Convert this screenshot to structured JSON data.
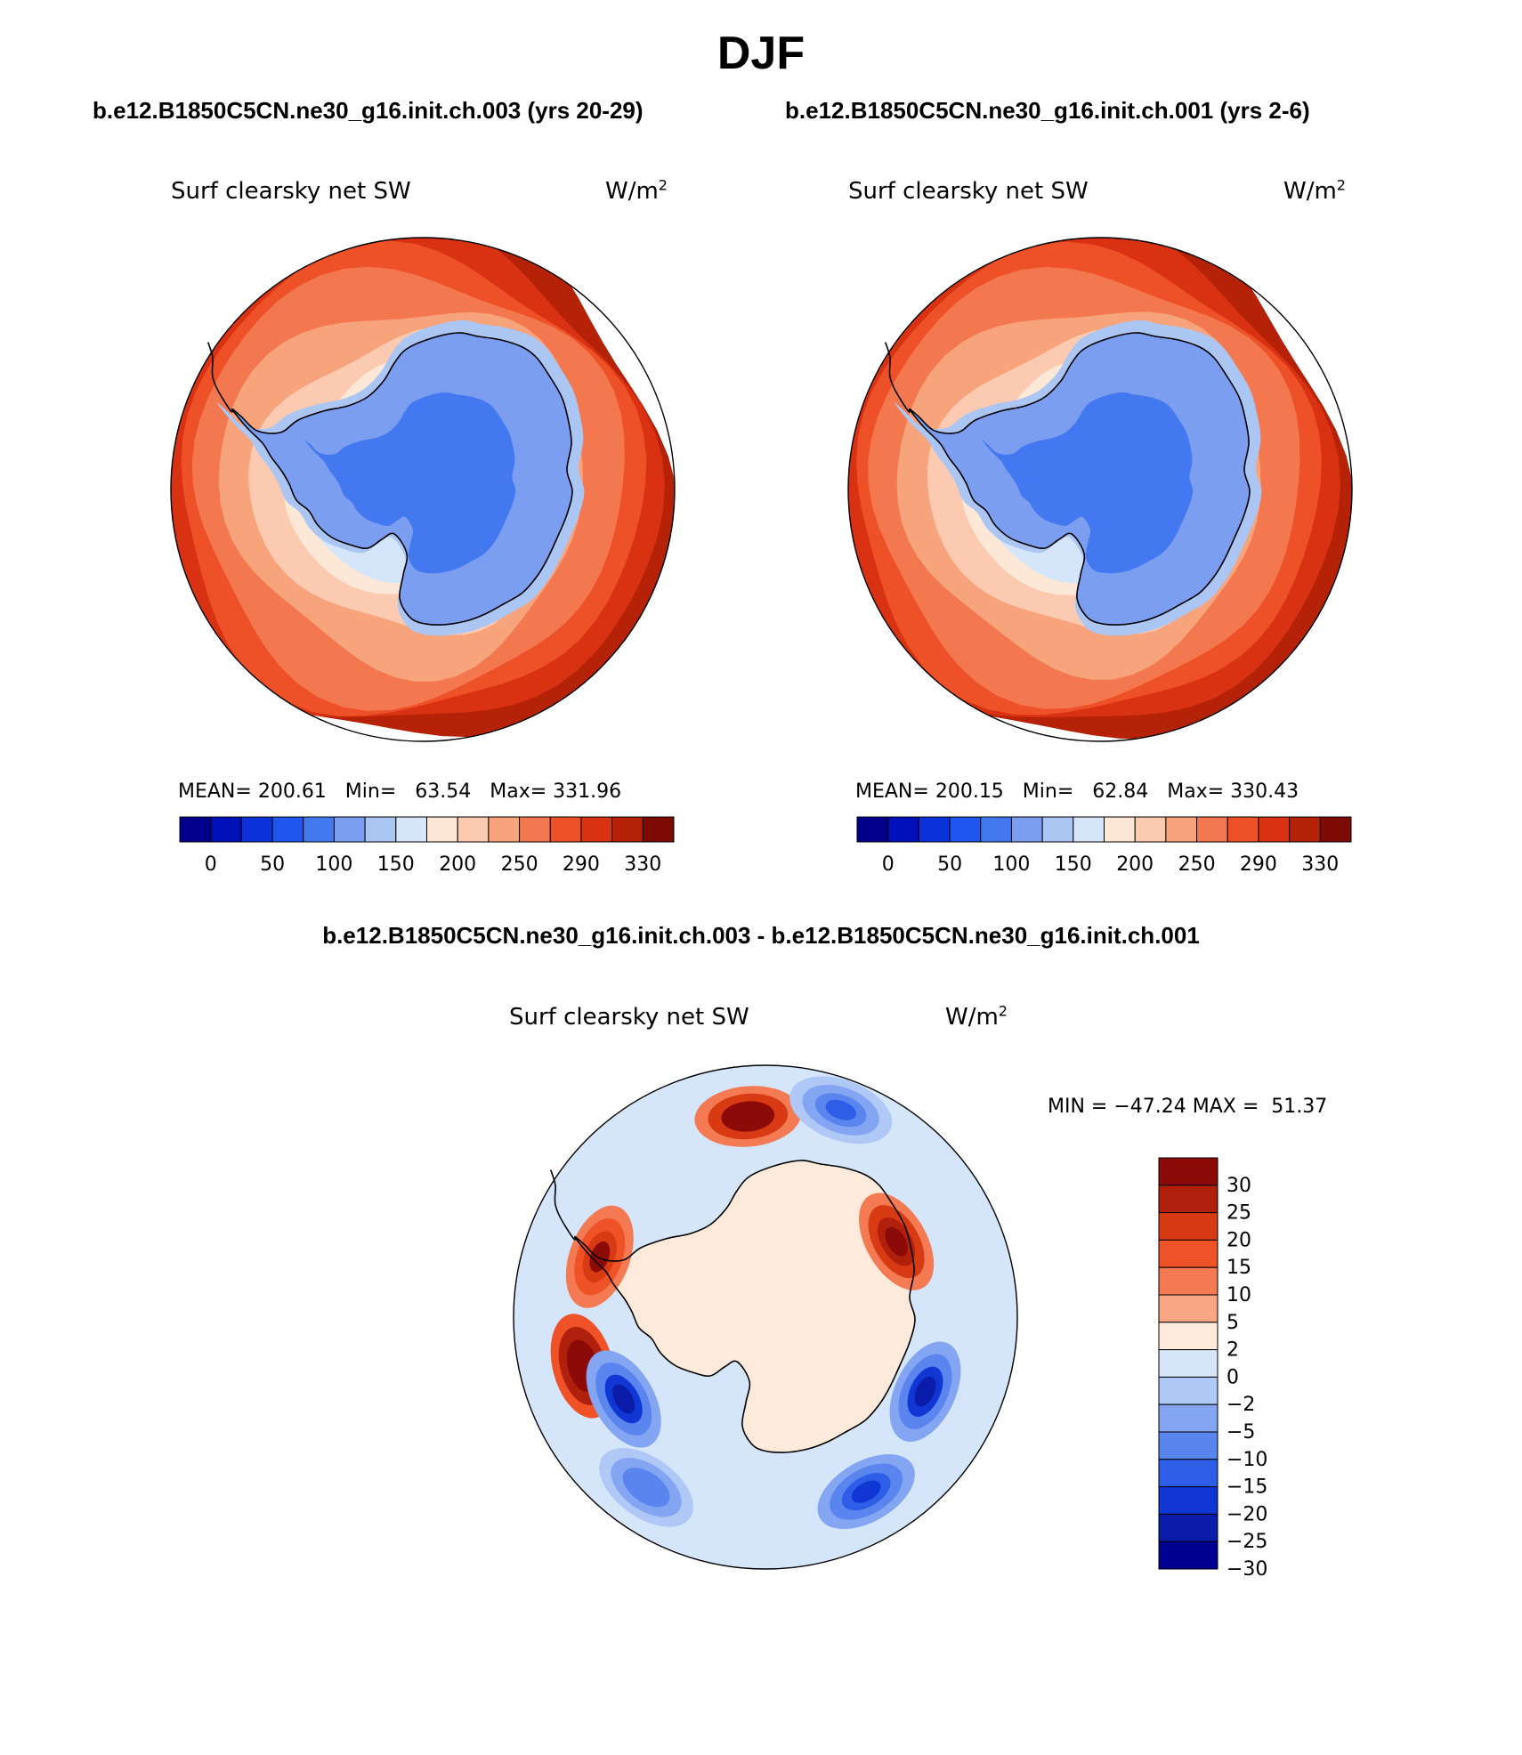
{
  "page": {
    "title": "DJF"
  },
  "panels": [
    {
      "case_title": "b.e12.B1850C5CN.ne30_g16.init.ch.003 (yrs 20-29)",
      "variable": "Surf clearsky net SW",
      "units_base": "W/m",
      "units_exp": "2",
      "stats": {
        "mean_label": "MEAN=",
        "mean": "200.61",
        "min_label": "Min=",
        "min": "63.54",
        "max_label": "Max=",
        "max": "331.96"
      }
    },
    {
      "case_title": "b.e12.B1850C5CN.ne30_g16.init.ch.001 (yrs 2-6)",
      "variable": "Surf clearsky net SW",
      "units_base": "W/m",
      "units_exp": "2",
      "stats": {
        "mean_label": "MEAN=",
        "mean": "200.15",
        "min_label": "Min=",
        "min": "62.84",
        "max_label": "Max=",
        "max": "330.43"
      }
    }
  ],
  "diff_panel": {
    "title": "b.e12.B1850C5CN.ne30_g16.init.ch.003 - b.e12.B1850C5CN.ne30_g16.init.ch.001",
    "variable": "Surf clearsky net SW",
    "units_base": "W/m",
    "units_exp": "2",
    "minmax_text": "MIN = −47.24 MAX =  51.37"
  },
  "chart_data": [
    {
      "type": "heatmap",
      "projection": "south polar stereographic",
      "title": "Surf clearsky net SW",
      "units": "W/m2",
      "stats": {
        "mean": 200.61,
        "min": 63.54,
        "max": 331.96
      },
      "colorbar": {
        "orientation": "horizontal",
        "tick_labels": [
          "0",
          "50",
          "100",
          "150",
          "200",
          "250",
          "290",
          "330"
        ],
        "colors": [
          "#00008c",
          "#0010b8",
          "#0a32d8",
          "#1e56ee",
          "#4478f0",
          "#7c9ef0",
          "#acc6f4",
          "#d6e6fa",
          "#fde8d8",
          "#fbcab0",
          "#f7a37c",
          "#f37850",
          "#ee5028",
          "#d83212",
          "#b52208",
          "#7e0a06"
        ]
      },
      "field": {
        "land_mean": 100,
        "ocean_inner": 160,
        "ocean_outer": 310
      }
    },
    {
      "type": "heatmap",
      "projection": "south polar stereographic",
      "title": "Surf clearsky net SW",
      "units": "W/m2",
      "stats": {
        "mean": 200.15,
        "min": 62.84,
        "max": 330.43
      },
      "colorbar": {
        "orientation": "horizontal",
        "tick_labels": [
          "0",
          "50",
          "100",
          "150",
          "200",
          "250",
          "290",
          "330"
        ],
        "colors": [
          "#00008c",
          "#0010b8",
          "#0a32d8",
          "#1e56ee",
          "#4478f0",
          "#7c9ef0",
          "#acc6f4",
          "#d6e6fa",
          "#fde8d8",
          "#fbcab0",
          "#f7a37c",
          "#f37850",
          "#ee5028",
          "#d83212",
          "#b52208",
          "#7e0a06"
        ]
      },
      "field": {
        "land_mean": 100,
        "ocean_inner": 160,
        "ocean_outer": 310
      }
    },
    {
      "type": "heatmap",
      "projection": "south polar stereographic",
      "title": "Surf clearsky net SW",
      "units": "W/m2",
      "stats": {
        "min": -47.24,
        "max": 51.37
      },
      "colorbar": {
        "orientation": "vertical",
        "tick_labels": [
          "30",
          "25",
          "20",
          "15",
          "10",
          "5",
          "2",
          "0",
          "−2",
          "−5",
          "−10",
          "−15",
          "−20",
          "−25",
          "−30"
        ],
        "colors": [
          "#8c0a08",
          "#b0200c",
          "#d83a14",
          "#ee5226",
          "#f37a52",
          "#f8a684",
          "#fdeada",
          "#d6e6fa",
          "#b0c8f6",
          "#84a6f2",
          "#5a84ee",
          "#2e5ee8",
          "#1036d4",
          "#0a1ca8",
          "#000090"
        ]
      },
      "anomalies": [
        {
          "lon_deg": 285,
          "lat_deg": -60,
          "value": 40
        },
        {
          "lon_deg": 250,
          "lat_deg": -62,
          "value": 25
        },
        {
          "lon_deg": 185,
          "lat_deg": -58,
          "value": 35
        },
        {
          "lon_deg": 120,
          "lat_deg": -66,
          "value": 30
        },
        {
          "lon_deg": 30,
          "lat_deg": -58,
          "value": -25
        },
        {
          "lon_deg": 65,
          "lat_deg": -62,
          "value": -30
        },
        {
          "lon_deg": 160,
          "lat_deg": -55,
          "value": -20
        },
        {
          "lon_deg": 300,
          "lat_deg": -64,
          "value": -30
        },
        {
          "lon_deg": 325,
          "lat_deg": -57,
          "value": -15
        }
      ]
    }
  ]
}
